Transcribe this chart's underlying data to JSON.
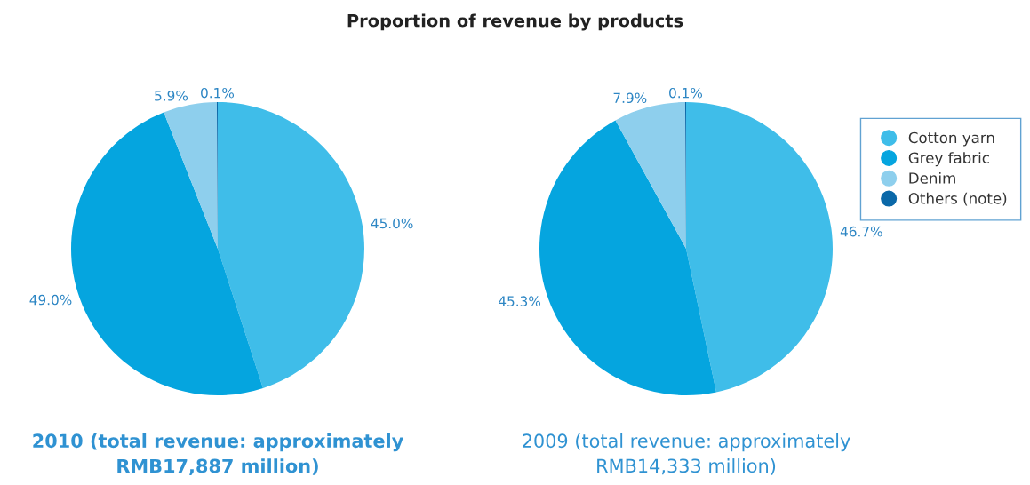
{
  "chart_data": [
    {
      "type": "pie",
      "title": "Proportion of revenue by products",
      "xlabel": "2010 (total revenue: approximately\nRMB17,887 million)",
      "categories": [
        "Cotton yarn",
        "Grey fabric",
        "Denim",
        "Others (note)"
      ],
      "values": [
        45.0,
        49.0,
        5.9,
        0.1
      ],
      "value_labels": [
        "45.0%",
        "49.0%",
        "5.9%",
        "0.1%"
      ],
      "colors": [
        "#3fbde9",
        "#05a5df",
        "#8ecfed",
        "#0b68a8"
      ],
      "legend": "right"
    },
    {
      "type": "pie",
      "xlabel": "2009 (total revenue: approximately\nRMB14,333 million)",
      "categories": [
        null,
        null,
        null,
        null
      ],
      "values": [
        46.7,
        45.3,
        7.9,
        0.1
      ],
      "value_labels": [
        "46.7%",
        "45.3%",
        "7.9%",
        "0.1%"
      ],
      "colors": [
        "#3fbde9",
        "#05a5df",
        "#8ecfed",
        "#0b68a8"
      ]
    }
  ]
}
